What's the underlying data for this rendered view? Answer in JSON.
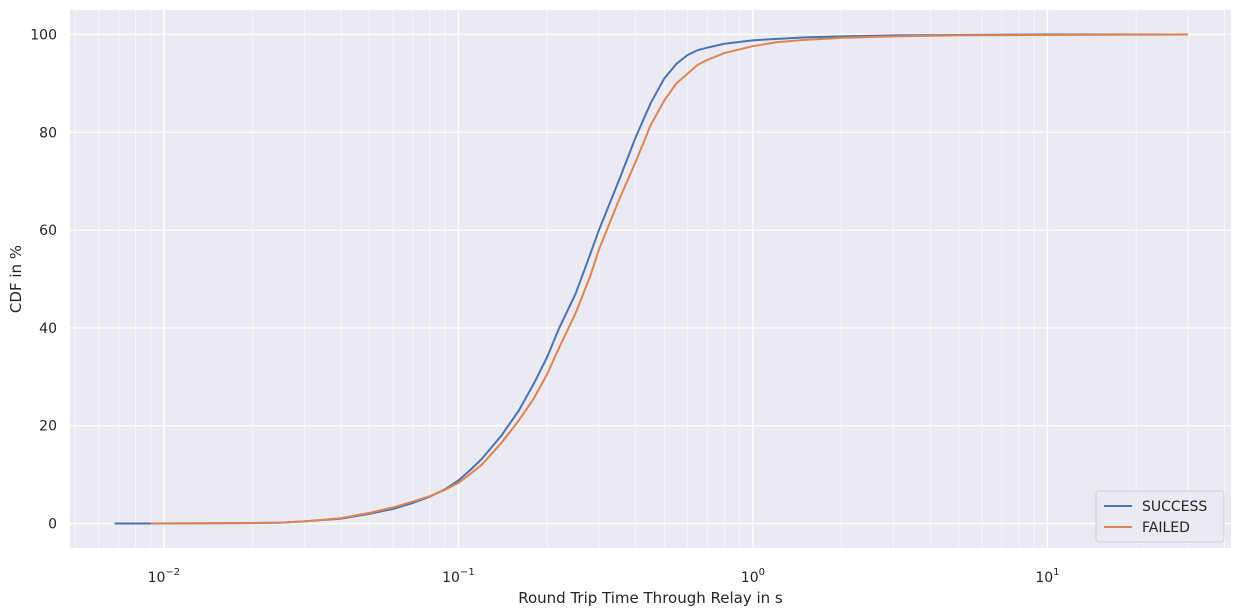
{
  "chart_data": {
    "type": "line",
    "xscale": "log",
    "xlabel": "Round Trip Time Through Relay in s",
    "ylabel": "CDF in %",
    "xlim": [
      0.0048,
      42
    ],
    "ylim": [
      -5,
      105
    ],
    "yticks": [
      0,
      20,
      40,
      60,
      80,
      100
    ],
    "xticks": [
      {
        "value": 0.01,
        "base": "10",
        "exp": "−2"
      },
      {
        "value": 0.1,
        "base": "10",
        "exp": "−1"
      },
      {
        "value": 1,
        "base": "10",
        "exp": "0"
      },
      {
        "value": 10,
        "base": "10",
        "exp": "1"
      }
    ],
    "grid": true,
    "background": "#eaeaf2",
    "legend_position": "bottom-right",
    "series": [
      {
        "name": "SUCCESS",
        "color": "#4c72b0",
        "points": [
          [
            0.0068,
            0
          ],
          [
            0.009,
            0
          ],
          [
            0.015,
            0.05
          ],
          [
            0.02,
            0.1
          ],
          [
            0.025,
            0.2
          ],
          [
            0.03,
            0.45
          ],
          [
            0.04,
            1.0
          ],
          [
            0.05,
            2.0
          ],
          [
            0.06,
            3.0
          ],
          [
            0.07,
            4.2
          ],
          [
            0.08,
            5.5
          ],
          [
            0.09,
            7.0
          ],
          [
            0.1,
            8.8
          ],
          [
            0.11,
            11.0
          ],
          [
            0.12,
            13.2
          ],
          [
            0.14,
            18.0
          ],
          [
            0.16,
            23.0
          ],
          [
            0.18,
            28.5
          ],
          [
            0.2,
            34.0
          ],
          [
            0.22,
            40.0
          ],
          [
            0.25,
            47.0
          ],
          [
            0.28,
            55.0
          ],
          [
            0.3,
            60.0
          ],
          [
            0.35,
            70.0
          ],
          [
            0.4,
            79.0
          ],
          [
            0.45,
            86.0
          ],
          [
            0.5,
            91.0
          ],
          [
            0.55,
            94.0
          ],
          [
            0.6,
            95.8
          ],
          [
            0.65,
            96.8
          ],
          [
            0.7,
            97.3
          ],
          [
            0.8,
            98.1
          ],
          [
            1.0,
            98.8
          ],
          [
            1.5,
            99.4
          ],
          [
            2,
            99.6
          ],
          [
            3,
            99.8
          ],
          [
            5,
            99.9
          ],
          [
            10,
            100
          ],
          [
            25,
            100
          ]
        ]
      },
      {
        "name": "FAILED",
        "color": "#dd8452",
        "points": [
          [
            0.009,
            0
          ],
          [
            0.015,
            0.05
          ],
          [
            0.02,
            0.1
          ],
          [
            0.025,
            0.2
          ],
          [
            0.03,
            0.45
          ],
          [
            0.04,
            1.1
          ],
          [
            0.05,
            2.2
          ],
          [
            0.06,
            3.3
          ],
          [
            0.07,
            4.5
          ],
          [
            0.08,
            5.6
          ],
          [
            0.09,
            6.9
          ],
          [
            0.1,
            8.3
          ],
          [
            0.11,
            10.2
          ],
          [
            0.12,
            12.0
          ],
          [
            0.14,
            16.5
          ],
          [
            0.16,
            21.0
          ],
          [
            0.18,
            25.5
          ],
          [
            0.2,
            30.5
          ],
          [
            0.22,
            36.0
          ],
          [
            0.25,
            43.0
          ],
          [
            0.28,
            50.5
          ],
          [
            0.3,
            56.0
          ],
          [
            0.35,
            66.0
          ],
          [
            0.4,
            74.0
          ],
          [
            0.45,
            81.5
          ],
          [
            0.5,
            86.5
          ],
          [
            0.55,
            90.0
          ],
          [
            0.6,
            92.0
          ],
          [
            0.65,
            93.8
          ],
          [
            0.7,
            94.8
          ],
          [
            0.8,
            96.2
          ],
          [
            1.0,
            97.6
          ],
          [
            1.2,
            98.4
          ],
          [
            1.5,
            98.9
          ],
          [
            2,
            99.3
          ],
          [
            3,
            99.6
          ],
          [
            5,
            99.8
          ],
          [
            10,
            99.9
          ],
          [
            30,
            100
          ]
        ]
      }
    ]
  }
}
